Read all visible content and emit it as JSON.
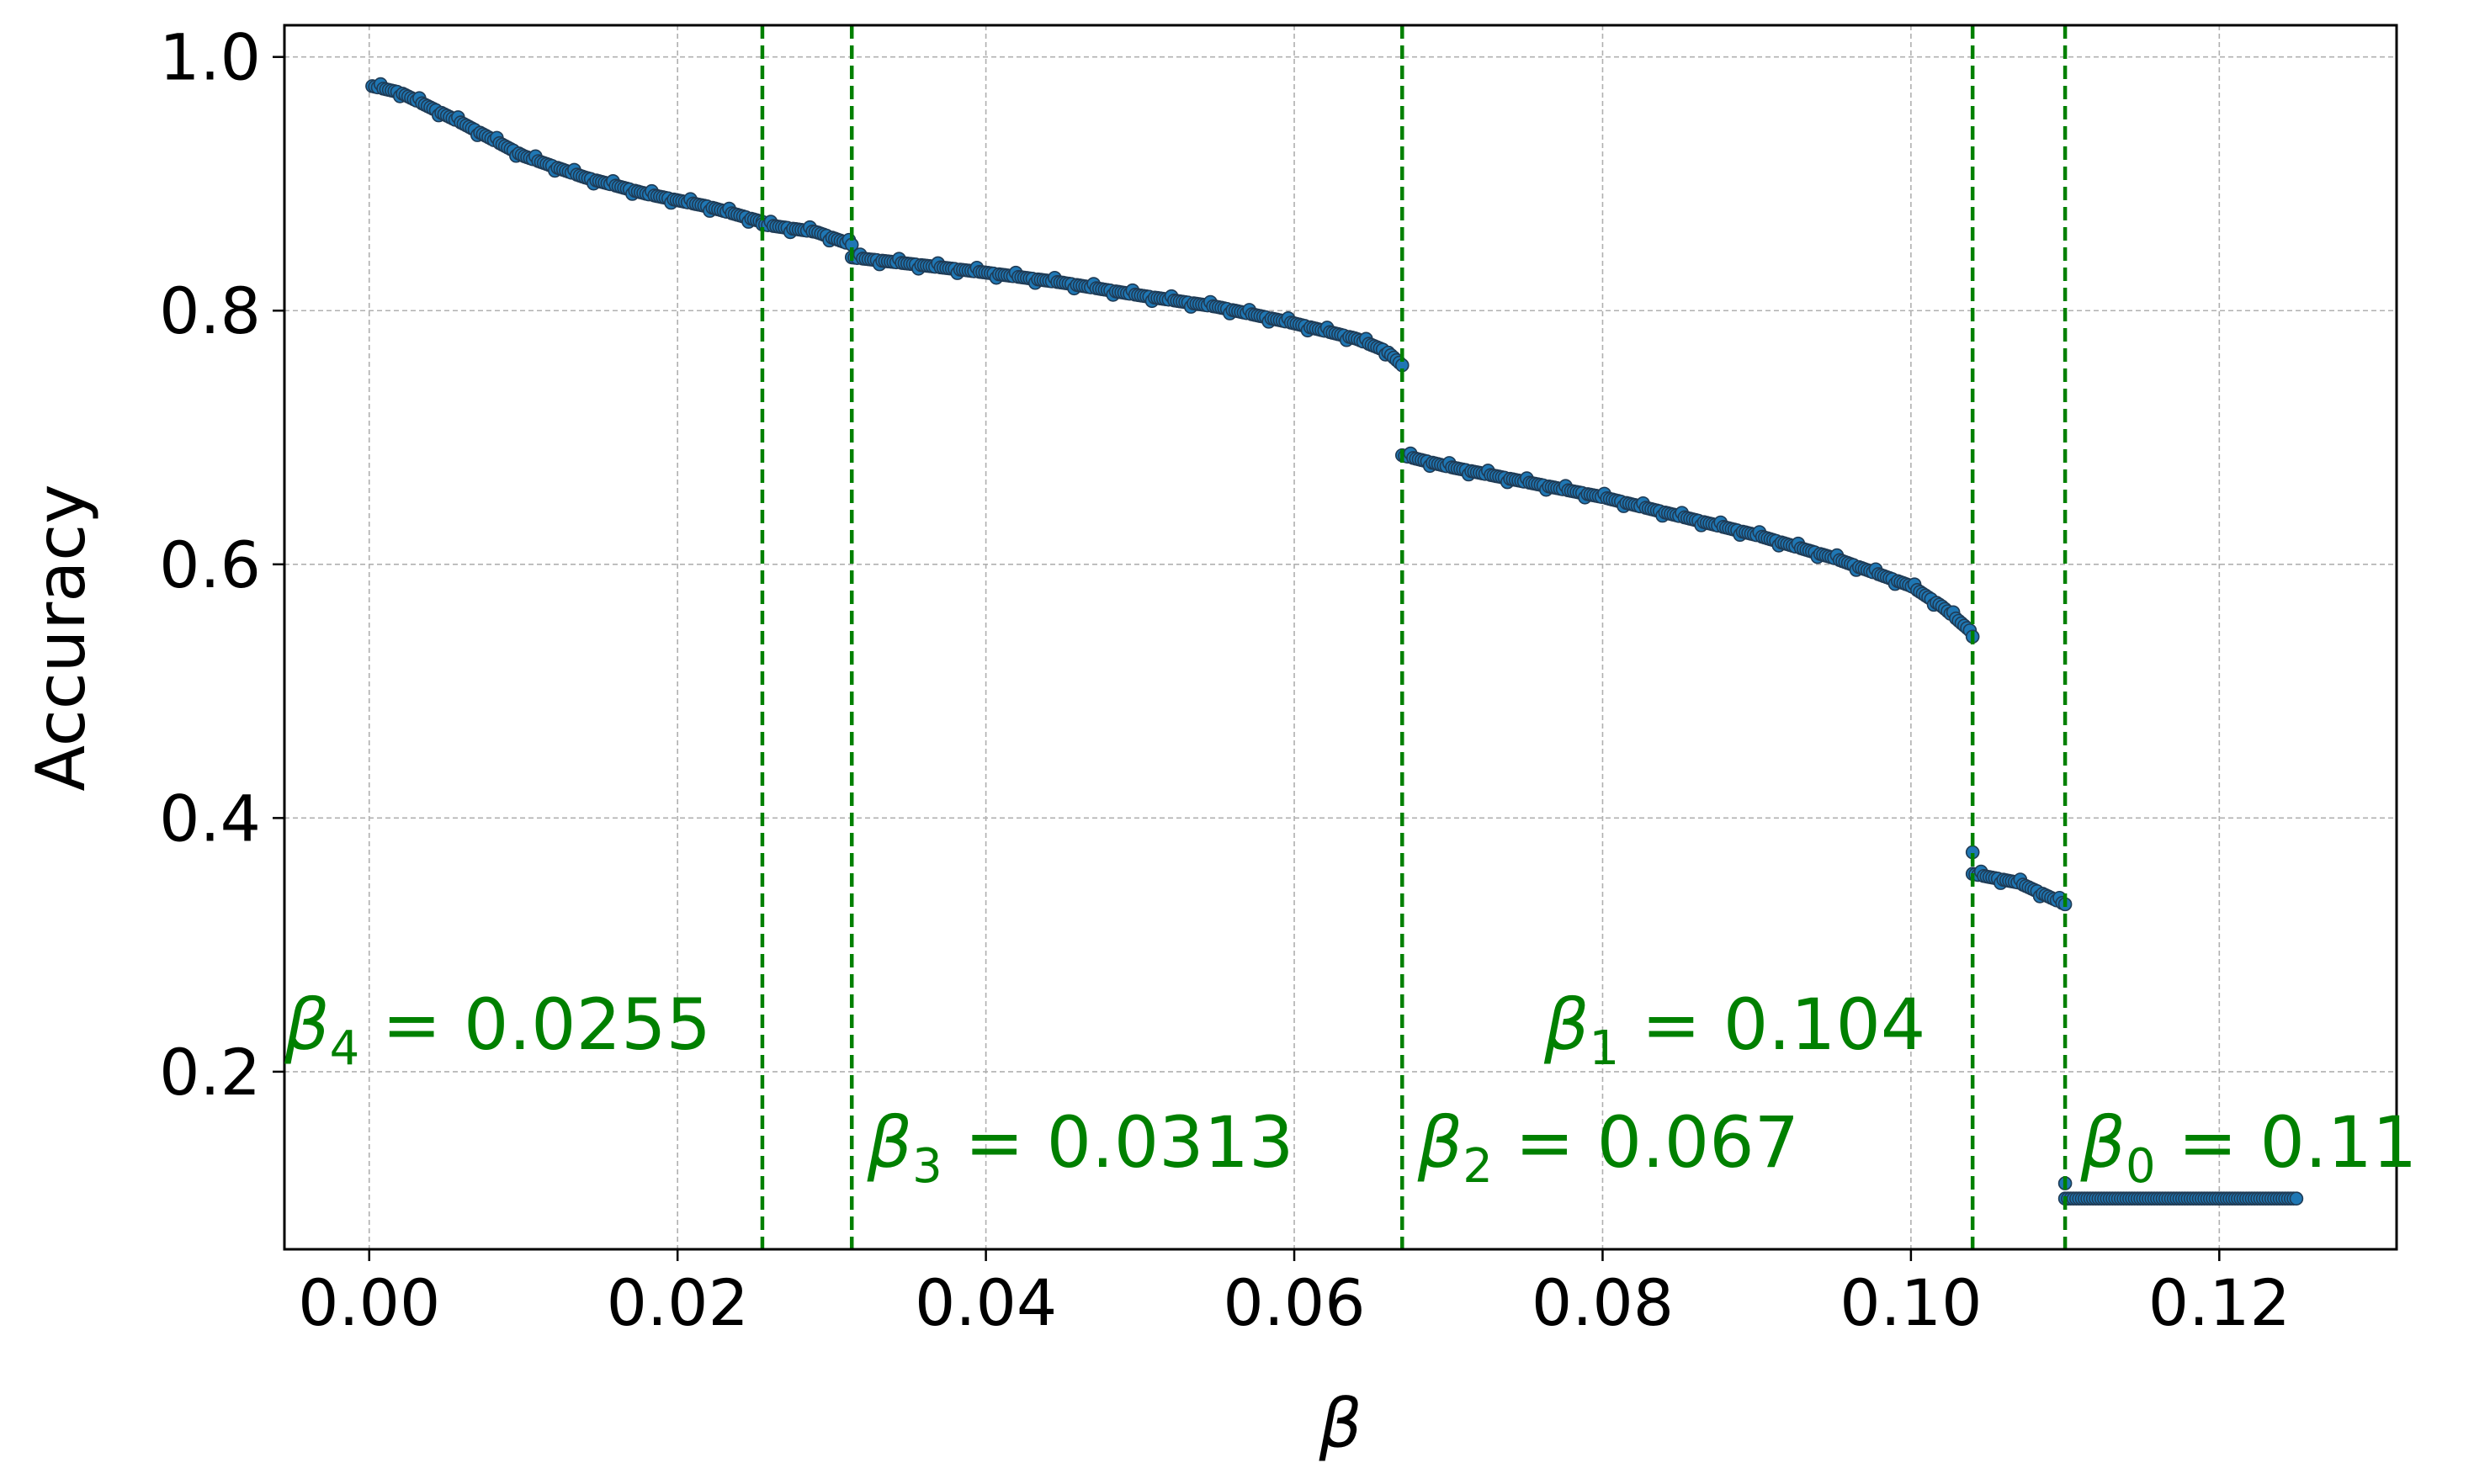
{
  "chart_data": {
    "type": "scatter",
    "xlabel": "β",
    "ylabel": "Accuracy",
    "xlim": [
      -0.0055,
      0.1315
    ],
    "ylim": [
      0.06,
      1.025
    ],
    "grid": true,
    "x_ticks": [
      "0.00",
      "0.02",
      "0.04",
      "0.06",
      "0.08",
      "0.10",
      "0.12"
    ],
    "x_tick_values": [
      0,
      0.02,
      0.04,
      0.06,
      0.08,
      0.1,
      0.12
    ],
    "y_ticks": [
      "0.2",
      "0.4",
      "0.6",
      "0.8",
      "1.0"
    ],
    "y_tick_values": [
      0.2,
      0.4,
      0.6,
      0.8,
      1.0
    ],
    "colors": {
      "points": "#1f77b4",
      "edge": "#1f3b55",
      "vlines": "#008000"
    },
    "series": [
      {
        "segments": [
          {
            "x_start": 0.0002,
            "x_end": 0.0255,
            "y_start": 0.977,
            "y_end": 0.87,
            "knots": [
              [
                0.0002,
                0.977
              ],
              [
                0.002,
                0.972
              ],
              [
                0.006,
                0.948
              ],
              [
                0.01,
                0.922
              ],
              [
                0.014,
                0.905
              ],
              [
                0.018,
                0.892
              ],
              [
                0.022,
                0.882
              ],
              [
                0.0255,
                0.87
              ]
            ]
          },
          {
            "x_start": 0.0255,
            "x_end": 0.0313,
            "y_start": 0.868,
            "y_end": 0.852,
            "knots": [
              [
                0.0255,
                0.868
              ],
              [
                0.029,
                0.862
              ],
              [
                0.0313,
                0.852
              ]
            ]
          },
          {
            "x_start": 0.0313,
            "x_end": 0.067,
            "y_start": 0.842,
            "y_end": 0.757,
            "knots": [
              [
                0.0313,
                0.842
              ],
              [
                0.035,
                0.837
              ],
              [
                0.04,
                0.83
              ],
              [
                0.045,
                0.822
              ],
              [
                0.05,
                0.812
              ],
              [
                0.055,
                0.803
              ],
              [
                0.06,
                0.79
              ],
              [
                0.064,
                0.778
              ],
              [
                0.066,
                0.768
              ],
              [
                0.067,
                0.757
              ]
            ]
          },
          {
            "x_start": 0.067,
            "x_end": 0.104,
            "y_start": 0.686,
            "y_end": 0.546,
            "knots": [
              [
                0.067,
                0.686
              ],
              [
                0.07,
                0.677
              ],
              [
                0.075,
                0.665
              ],
              [
                0.08,
                0.653
              ],
              [
                0.085,
                0.638
              ],
              [
                0.09,
                0.623
              ],
              [
                0.095,
                0.605
              ],
              [
                0.1,
                0.583
              ],
              [
                0.102,
                0.567
              ],
              [
                0.104,
                0.546
              ]
            ]
          },
          {
            "x_start": 0.104,
            "x_end": 0.11,
            "y_start": 0.356,
            "y_end": 0.332,
            "knots": [
              [
                0.104,
                0.356
              ],
              [
                0.107,
                0.349
              ],
              [
                0.11,
                0.332
              ]
            ]
          },
          {
            "x_start": 0.11,
            "x_end": 0.125,
            "y_start": 0.1,
            "y_end": 0.1,
            "knots": [
              [
                0.11,
                0.1
              ],
              [
                0.125,
                0.1
              ]
            ]
          }
        ],
        "points": [
          [
            0.104,
            0.373
          ],
          [
            0.11,
            0.112
          ]
        ]
      }
    ],
    "thresholds": [
      {
        "x": 0.0255,
        "label": "β",
        "sub": "4",
        "value": " = 0.0255",
        "label_x": -0.0055,
        "label_y": 0.218
      },
      {
        "x": 0.0313,
        "label": "β",
        "sub": "3",
        "value": " = 0.0313",
        "label_x": 0.0323,
        "label_y": 0.125
      },
      {
        "x": 0.067,
        "label": "β",
        "sub": "2",
        "value": " = 0.067",
        "label_x": 0.068,
        "label_y": 0.125
      },
      {
        "x": 0.104,
        "label": "β",
        "sub": "1",
        "value": " = 0.104",
        "label_x": 0.0762,
        "label_y": 0.218
      },
      {
        "x": 0.11,
        "label": "β",
        "sub": "0",
        "value": " = 0.11",
        "label_x": 0.111,
        "label_y": 0.125
      }
    ]
  }
}
